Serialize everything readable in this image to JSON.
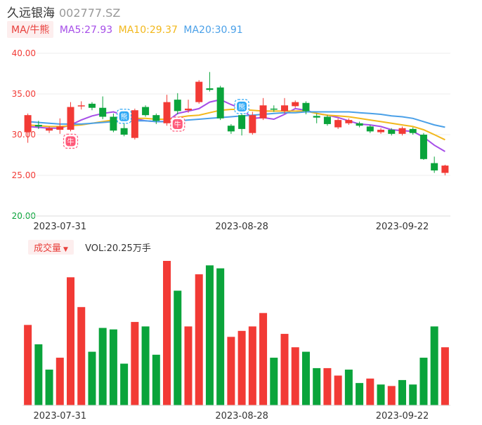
{
  "header": {
    "name": "久远银海",
    "code": "002777.SZ"
  },
  "ma_legend": {
    "tag": "MA/牛熊",
    "items": [
      {
        "label": "MA5:27.93",
        "color": "#a64ee8"
      },
      {
        "label": "MA10:29.37",
        "color": "#f2b81c"
      },
      {
        "label": "MA20:30.91",
        "color": "#4aa0e8"
      }
    ]
  },
  "volume_legend": {
    "tag": "成交量",
    "arrow": "▼",
    "value": "VOL:20.25万手"
  },
  "colors": {
    "up": "#f23a35",
    "down": "#0aa43b",
    "grid": "#eeeeee"
  },
  "chart_data": [
    {
      "type": "candlestick",
      "ylim": [
        20,
        40
      ],
      "yticks": [
        "40.00",
        "35.00",
        "30.00",
        "25.00",
        "20.00"
      ],
      "xtick_labels": [
        "2023-07-31",
        "2023-08-28",
        "2023-09-22"
      ],
      "xtick_index": [
        3,
        20,
        35
      ],
      "candles": [
        {
          "o": 30.3,
          "c": 32.4,
          "h": 32.6,
          "l": 29.0
        },
        {
          "o": 31.2,
          "c": 31.0,
          "h": 31.7,
          "l": 30.7
        },
        {
          "o": 30.5,
          "c": 30.8,
          "h": 31.0,
          "l": 30.2
        },
        {
          "o": 30.6,
          "c": 31.0,
          "h": 32.0,
          "l": 30.1
        },
        {
          "o": 30.6,
          "c": 33.4,
          "h": 34.0,
          "l": 30.4
        },
        {
          "o": 33.5,
          "c": 33.6,
          "h": 34.1,
          "l": 33.1
        },
        {
          "o": 33.8,
          "c": 33.3,
          "h": 34.0,
          "l": 33.0
        },
        {
          "o": 33.3,
          "c": 32.2,
          "h": 34.7,
          "l": 31.9
        },
        {
          "o": 32.2,
          "c": 30.5,
          "h": 32.6,
          "l": 30.3
        },
        {
          "o": 30.8,
          "c": 30.0,
          "h": 31.4,
          "l": 29.8
        },
        {
          "o": 29.6,
          "c": 33.0,
          "h": 33.2,
          "l": 29.4
        },
        {
          "o": 33.4,
          "c": 32.4,
          "h": 33.6,
          "l": 32.2
        },
        {
          "o": 32.4,
          "c": 31.7,
          "h": 32.6,
          "l": 31.3
        },
        {
          "o": 31.4,
          "c": 34.0,
          "h": 34.9,
          "l": 31.1
        },
        {
          "o": 34.3,
          "c": 32.9,
          "h": 35.1,
          "l": 32.5
        },
        {
          "o": 33.0,
          "c": 33.2,
          "h": 34.3,
          "l": 32.7
        },
        {
          "o": 34.0,
          "c": 36.5,
          "h": 36.7,
          "l": 33.8
        },
        {
          "o": 35.7,
          "c": 35.5,
          "h": 37.7,
          "l": 35.3
        },
        {
          "o": 35.8,
          "c": 32.0,
          "h": 36.0,
          "l": 31.8
        },
        {
          "o": 31.1,
          "c": 30.4,
          "h": 31.3,
          "l": 30.1
        },
        {
          "o": 32.4,
          "c": 30.7,
          "h": 32.6,
          "l": 29.9
        },
        {
          "o": 30.2,
          "c": 32.4,
          "h": 32.8,
          "l": 30.0
        },
        {
          "o": 32.0,
          "c": 33.6,
          "h": 34.5,
          "l": 31.8
        },
        {
          "o": 33.2,
          "c": 33.1,
          "h": 33.6,
          "l": 32.8
        },
        {
          "o": 32.9,
          "c": 33.6,
          "h": 34.5,
          "l": 32.6
        },
        {
          "o": 33.5,
          "c": 34.0,
          "h": 34.2,
          "l": 33.3
        },
        {
          "o": 33.9,
          "c": 32.9,
          "h": 34.1,
          "l": 32.5
        },
        {
          "o": 32.3,
          "c": 32.1,
          "h": 32.6,
          "l": 31.4
        },
        {
          "o": 32.2,
          "c": 31.3,
          "h": 32.4,
          "l": 31.1
        },
        {
          "o": 30.9,
          "c": 31.8,
          "h": 32.0,
          "l": 30.7
        },
        {
          "o": 31.4,
          "c": 31.8,
          "h": 32.0,
          "l": 31.2
        },
        {
          "o": 31.4,
          "c": 31.1,
          "h": 31.6,
          "l": 30.9
        },
        {
          "o": 31.0,
          "c": 30.4,
          "h": 31.2,
          "l": 30.2
        },
        {
          "o": 30.3,
          "c": 30.6,
          "h": 30.8,
          "l": 30.1
        },
        {
          "o": 30.6,
          "c": 30.1,
          "h": 30.8,
          "l": 29.9
        },
        {
          "o": 30.1,
          "c": 30.8,
          "h": 31.0,
          "l": 29.9
        },
        {
          "o": 30.7,
          "c": 30.2,
          "h": 30.9,
          "l": 30.0
        },
        {
          "o": 30.0,
          "c": 27.0,
          "h": 30.2,
          "l": 26.9
        },
        {
          "o": 26.5,
          "c": 25.6,
          "h": 27.3,
          "l": 25.3
        },
        {
          "o": 25.3,
          "c": 26.2,
          "h": 26.3,
          "l": 25.0
        }
      ],
      "ma": [
        {
          "name": "MA5",
          "color": "#a64ee8",
          "values": [
            31.0,
            30.9,
            30.8,
            30.8,
            31.2,
            31.8,
            32.3,
            32.6,
            32.8,
            32.4,
            32.0,
            31.7,
            31.6,
            31.6,
            32.6,
            32.9,
            33.2,
            34.0,
            34.3,
            33.7,
            33.2,
            32.0,
            32.1,
            31.9,
            32.5,
            33.2,
            33.0,
            32.6,
            32.4,
            32.1,
            31.7,
            31.3,
            31.2,
            31.0,
            30.6,
            30.5,
            30.4,
            29.7,
            28.7,
            27.93
          ]
        },
        {
          "name": "MA10",
          "color": "#f2b81c",
          "values": [
            31.2,
            31.1,
            31.0,
            31.0,
            31.1,
            31.2,
            31.4,
            31.6,
            31.8,
            31.9,
            32.0,
            32.0,
            31.9,
            31.9,
            32.1,
            32.3,
            32.4,
            32.7,
            33.0,
            33.1,
            33.1,
            33.0,
            32.9,
            32.9,
            32.9,
            32.9,
            32.9,
            32.6,
            32.4,
            32.3,
            32.2,
            32.0,
            31.8,
            31.6,
            31.4,
            31.2,
            31.0,
            30.6,
            30.0,
            29.37
          ]
        },
        {
          "name": "MA20",
          "color": "#4aa0e8",
          "values": [
            31.6,
            31.5,
            31.4,
            31.3,
            31.3,
            31.3,
            31.4,
            31.5,
            31.6,
            31.6,
            31.7,
            31.7,
            31.6,
            31.6,
            31.7,
            31.8,
            31.9,
            32.0,
            32.1,
            32.2,
            32.3,
            32.4,
            32.5,
            32.6,
            32.7,
            32.7,
            32.8,
            32.8,
            32.8,
            32.8,
            32.8,
            32.7,
            32.6,
            32.5,
            32.3,
            32.2,
            32.0,
            31.6,
            31.2,
            30.91
          ]
        }
      ],
      "badges": [
        {
          "index": 4,
          "label": "牛",
          "kind": "bull",
          "side": "below"
        },
        {
          "index": 9,
          "label": "熊",
          "kind": "bear",
          "side": "above"
        },
        {
          "index": 14,
          "label": "牛",
          "kind": "bull",
          "side": "below"
        },
        {
          "index": 20,
          "label": "熊",
          "kind": "bear",
          "side": "above"
        }
      ]
    },
    {
      "type": "bar",
      "title": "成交量",
      "volumes": [
        5.4,
        4.1,
        2.4,
        3.2,
        8.6,
        6.6,
        3.6,
        5.2,
        5.1,
        2.8,
        5.6,
        5.3,
        3.4,
        9.7,
        7.7,
        5.3,
        8.8,
        9.4,
        9.2,
        4.6,
        5.0,
        5.3,
        6.2,
        3.2,
        4.8,
        3.9,
        3.6,
        2.5,
        2.5,
        2.0,
        2.4,
        1.5,
        1.8,
        1.4,
        1.3,
        1.7,
        1.4,
        3.2,
        5.3,
        3.9
      ],
      "directions": [
        "up",
        "down",
        "down",
        "up",
        "up",
        "up",
        "down",
        "down",
        "down",
        "down",
        "up",
        "down",
        "down",
        "up",
        "down",
        "up",
        "up",
        "down",
        "down",
        "up",
        "up",
        "up",
        "up",
        "down",
        "up",
        "up",
        "down",
        "down",
        "up",
        "up",
        "down",
        "down",
        "up",
        "down",
        "up",
        "down",
        "down",
        "down",
        "down",
        "up"
      ],
      "xtick_labels": [
        "2023-07-31",
        "2023-08-28",
        "2023-09-22"
      ],
      "xtick_index": [
        3,
        20,
        35
      ]
    }
  ]
}
